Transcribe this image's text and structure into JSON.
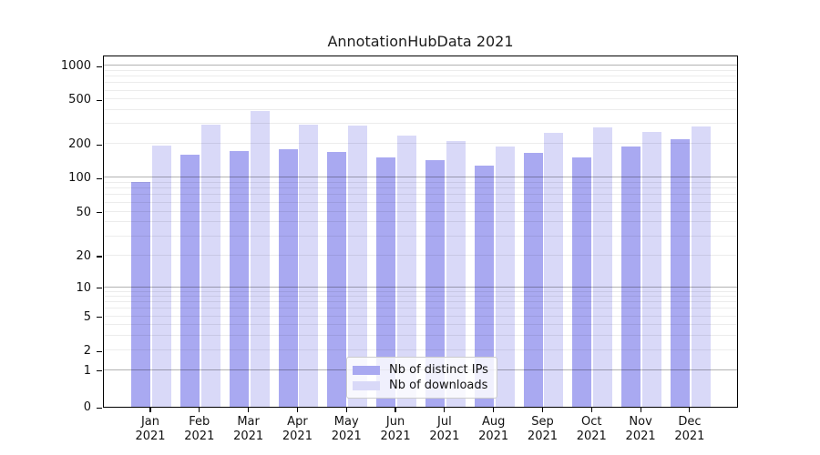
{
  "chart_data": {
    "type": "bar",
    "title": "AnnotationHubData 2021",
    "categories": [
      "Jan",
      "Feb",
      "Mar",
      "Apr",
      "May",
      "Jun",
      "Jul",
      "Aug",
      "Sep",
      "Oct",
      "Nov",
      "Dec"
    ],
    "category_year": "2021",
    "series": [
      {
        "name": "Nb of distinct IPs",
        "color": "#a9a9f1",
        "values": [
          91,
          160,
          172,
          178,
          171,
          150,
          144,
          128,
          166,
          150,
          190,
          219
        ]
      },
      {
        "name": "Nb of downloads",
        "color": "#d9d9f8",
        "values": [
          194,
          298,
          394,
          298,
          289,
          237,
          213,
          188,
          249,
          280,
          256,
          287
        ]
      }
    ],
    "yticks": [
      0,
      1,
      2,
      5,
      10,
      20,
      50,
      100,
      200,
      500,
      1000
    ],
    "yscale": "symlog",
    "ylim": [
      0,
      1100
    ],
    "grid": true,
    "legend_position": "inside-bottom-center",
    "frame_color": "#000000",
    "background_color": "#ffffff"
  }
}
